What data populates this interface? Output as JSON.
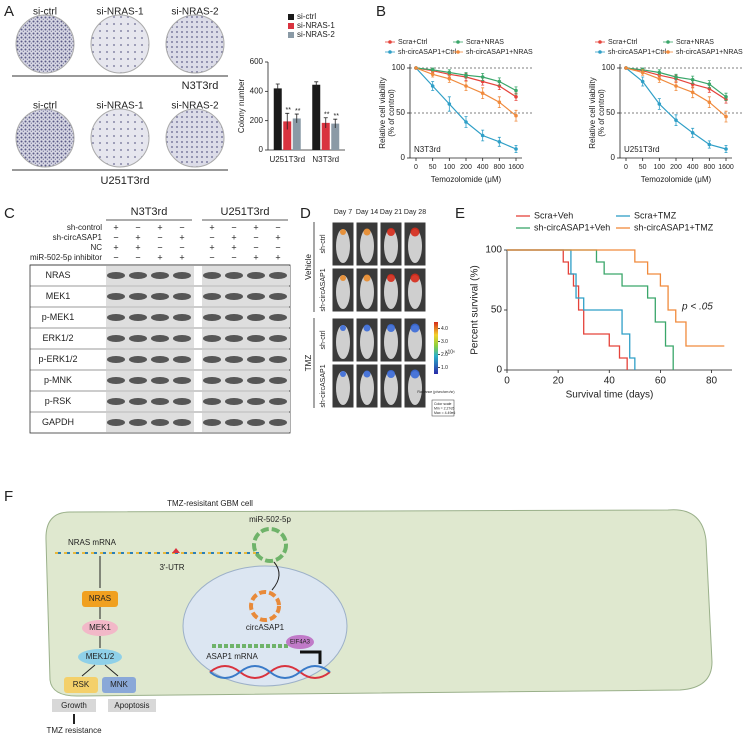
{
  "panel_labels": [
    "A",
    "B",
    "C",
    "D",
    "E",
    "F"
  ],
  "colony": {
    "conditions": [
      "si-ctrl",
      "si-NRAS-1",
      "si-NRAS-2"
    ],
    "cell_lines": [
      "N3T3rd",
      "U251T3rd"
    ]
  },
  "chart_data": [
    {
      "type": "bar",
      "ylabel": "Colony number",
      "categories": [
        "U251T3rd",
        "N3T3rd"
      ],
      "ylim": [
        0,
        600
      ],
      "yticks": [
        0,
        200,
        400,
        600
      ],
      "series": [
        {
          "name": "si-ctrl",
          "color": "#1a1a1a",
          "values": [
            420,
            445
          ],
          "errors": [
            30,
            20
          ]
        },
        {
          "name": "si-NRAS-1",
          "color": "#d9333f",
          "values": [
            195,
            185
          ],
          "errors": [
            55,
            35
          ],
          "annotations": [
            "**",
            "**"
          ]
        },
        {
          "name": "si-NRAS-2",
          "color": "#8a9aa6",
          "values": [
            215,
            180
          ],
          "errors": [
            30,
            30
          ],
          "annotations": [
            "**",
            "**"
          ]
        }
      ]
    },
    {
      "type": "line",
      "label": "N3T3rd",
      "xlabel": "Temozolomide (μM)",
      "ylabel": [
        "Relative cell viability",
        "(% of control)"
      ],
      "categories": [
        0,
        50,
        100,
        200,
        400,
        800,
        1600
      ],
      "ylim": [
        0,
        100
      ],
      "yticks": [
        0,
        50,
        100
      ],
      "ref_lines": [
        50,
        100
      ],
      "series": [
        {
          "name": "Scra+Ctrl",
          "color": "#e5433b",
          "values": [
            100,
            97,
            93,
            90,
            85,
            80,
            68
          ],
          "errors": [
            0,
            2,
            3,
            4,
            4,
            4,
            4
          ]
        },
        {
          "name": "Scra+NRAS",
          "color": "#3aa66a",
          "values": [
            100,
            98,
            95,
            92,
            90,
            85,
            75
          ],
          "errors": [
            0,
            2,
            3,
            3,
            4,
            4,
            4
          ]
        },
        {
          "name": "sh-circASAP1+Ctrl",
          "color": "#2f9fc7",
          "values": [
            100,
            80,
            60,
            40,
            25,
            18,
            10
          ],
          "errors": [
            0,
            5,
            8,
            6,
            6,
            5,
            4
          ]
        },
        {
          "name": "sh-circASAP1+NRAS",
          "color": "#f08a3c",
          "values": [
            100,
            93,
            88,
            80,
            72,
            62,
            47
          ],
          "errors": [
            0,
            3,
            4,
            5,
            6,
            6,
            6
          ]
        }
      ]
    },
    {
      "type": "line",
      "label": "U251T3rd",
      "xlabel": "Temozolomide (μM)",
      "ylabel": [
        "Relative cell viability",
        "(% of control)"
      ],
      "categories": [
        0,
        50,
        100,
        200,
        400,
        800,
        1600
      ],
      "ylim": [
        0,
        100
      ],
      "yticks": [
        0,
        50,
        100
      ],
      "ref_lines": [
        50,
        100
      ],
      "series": [
        {
          "name": "Scra+Ctrl",
          "color": "#e5433b",
          "values": [
            100,
            97,
            92,
            88,
            82,
            77,
            65
          ],
          "errors": [
            0,
            2,
            3,
            4,
            4,
            4,
            4
          ]
        },
        {
          "name": "Scra+NRAS",
          "color": "#3aa66a",
          "values": [
            100,
            98,
            95,
            90,
            87,
            82,
            68
          ],
          "errors": [
            0,
            2,
            3,
            3,
            4,
            4,
            4
          ]
        },
        {
          "name": "sh-circASAP1+Ctrl",
          "color": "#2f9fc7",
          "values": [
            100,
            85,
            60,
            42,
            28,
            15,
            10
          ],
          "errors": [
            0,
            5,
            6,
            6,
            5,
            4,
            4
          ]
        },
        {
          "name": "sh-circASAP1+NRAS",
          "color": "#f08a3c",
          "values": [
            100,
            95,
            88,
            80,
            73,
            62,
            46
          ],
          "errors": [
            0,
            3,
            4,
            5,
            6,
            6,
            6
          ]
        }
      ]
    },
    {
      "type": "survival",
      "xlabel": "Survival time (days)",
      "ylabel": "Percent survival (%)",
      "annotation": "p < .05",
      "xlim": [
        0,
        88
      ],
      "xticks": [
        0,
        20,
        40,
        60,
        80
      ],
      "ylim": [
        0,
        100
      ],
      "yticks": [
        0,
        50,
        100
      ],
      "series": [
        {
          "name": "Scra+Veh",
          "color": "#e5433b",
          "x": [
            0,
            22,
            24,
            26,
            28,
            30,
            40,
            44,
            47
          ],
          "values": [
            100,
            90,
            80,
            70,
            50,
            30,
            20,
            10,
            0
          ]
        },
        {
          "name": "Scra+TMZ",
          "color": "#2f9fc7",
          "x": [
            0,
            25,
            27,
            30,
            45,
            48,
            50
          ],
          "values": [
            100,
            80,
            60,
            50,
            30,
            10,
            0
          ]
        },
        {
          "name": "sh-circASAP1+Veh",
          "color": "#3aa66a",
          "x": [
            0,
            35,
            38,
            45,
            55,
            58,
            62,
            65
          ],
          "values": [
            100,
            90,
            80,
            70,
            60,
            40,
            20,
            0
          ]
        },
        {
          "name": "sh-circASAP1+TMZ",
          "color": "#f08a3c",
          "x": [
            0,
            50,
            55,
            60,
            63,
            66,
            70,
            85
          ],
          "values": [
            100,
            90,
            80,
            70,
            50,
            40,
            20,
            20
          ]
        }
      ]
    }
  ],
  "western": {
    "cell_lines": [
      "N3T3rd",
      "U251T3rd"
    ],
    "treatments": [
      {
        "name": "sh-control",
        "signs": [
          "+",
          "−",
          "+",
          "−",
          "+",
          "−",
          "+",
          "−"
        ]
      },
      {
        "name": "sh-circASAP1",
        "signs": [
          "−",
          "+",
          "−",
          "+",
          "−",
          "+",
          "−",
          "+"
        ]
      },
      {
        "name": "NC",
        "signs": [
          "+",
          "+",
          "−",
          "−",
          "+",
          "+",
          "−",
          "−"
        ]
      },
      {
        "name": "miR-502-5p inhibitor",
        "signs": [
          "−",
          "−",
          "+",
          "+",
          "−",
          "−",
          "+",
          "+"
        ]
      }
    ],
    "proteins": [
      "NRAS",
      "MEK1",
      "p-MEK1",
      "ERK1/2",
      "p-ERK1/2",
      "p-MNK",
      "p-RSK",
      "GAPDH"
    ]
  },
  "mice": {
    "days": [
      "Day 7",
      "Day 14",
      "Day 21",
      "Day 28"
    ],
    "groups": [
      {
        "name": "Vehicle",
        "rows": [
          "sh-ctrl",
          "sh-circASAP1"
        ]
      },
      {
        "name": "TMZ",
        "rows": [
          "sh-ctrl",
          "sh-circASAP1"
        ]
      }
    ],
    "colorbar": {
      "ylim": [
        0.5,
        4.5
      ],
      "ticks": [
        {
          "value": 4,
          "label": "4.0"
        },
        {
          "value": 3,
          "label": "3.0"
        },
        {
          "value": 2,
          "label": "2.0"
        },
        {
          "value": 1,
          "label": "1.0"
        }
      ],
      "unit": "x10⁶",
      "title": "Radiance (p/sec/cm²/sr)",
      "scale": [
        "Color scale",
        "Min = 2.27e5",
        "Max = 4.49e6"
      ]
    }
  },
  "diagram": {
    "title": "TMZ-resisitant GBM cell",
    "nras_mrna": "NRAS mRNA",
    "utr": "3'-UTR",
    "mirna": "miR-502-5p",
    "nras": "NRAS",
    "mek1": "MEK1",
    "mek12": "MEK1/2",
    "rsk": "RSK",
    "mnk": "MNK",
    "circ": "circASAP1",
    "asap1_mrna": "ASAP1 mRNA",
    "eif4a3": "EIF4A3",
    "growth": "Growth",
    "apoptosis": "Apoptosis",
    "outcome": "TMZ resistance"
  }
}
